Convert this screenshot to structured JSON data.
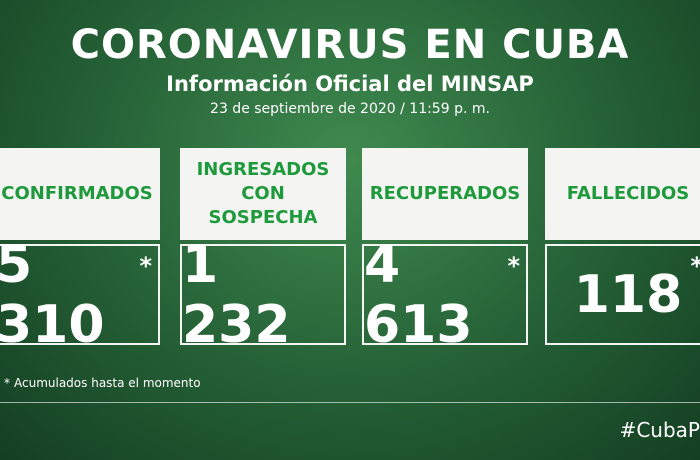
{
  "header": {
    "title": "CORONAVIRUS EN CUBA",
    "subtitle": "Información Oficial del MINSAP",
    "date": "23 de septiembre de 2020 / 11:59 p. m."
  },
  "cards": [
    {
      "label": "CONFIRMADOS",
      "value": "5 310",
      "mark": "*"
    },
    {
      "label": "INGRESADOS CON SOSPECHA",
      "value": "1 232"
    },
    {
      "label": "RECUPERADOS",
      "value": "4 613",
      "mark": "*"
    },
    {
      "label": "FALLECIDOS",
      "value": "118",
      "mark": "*"
    }
  ],
  "footnote": {
    "mark": "*",
    "text": "Acumulados hasta el momento"
  },
  "hashtag": "#CubaP"
}
